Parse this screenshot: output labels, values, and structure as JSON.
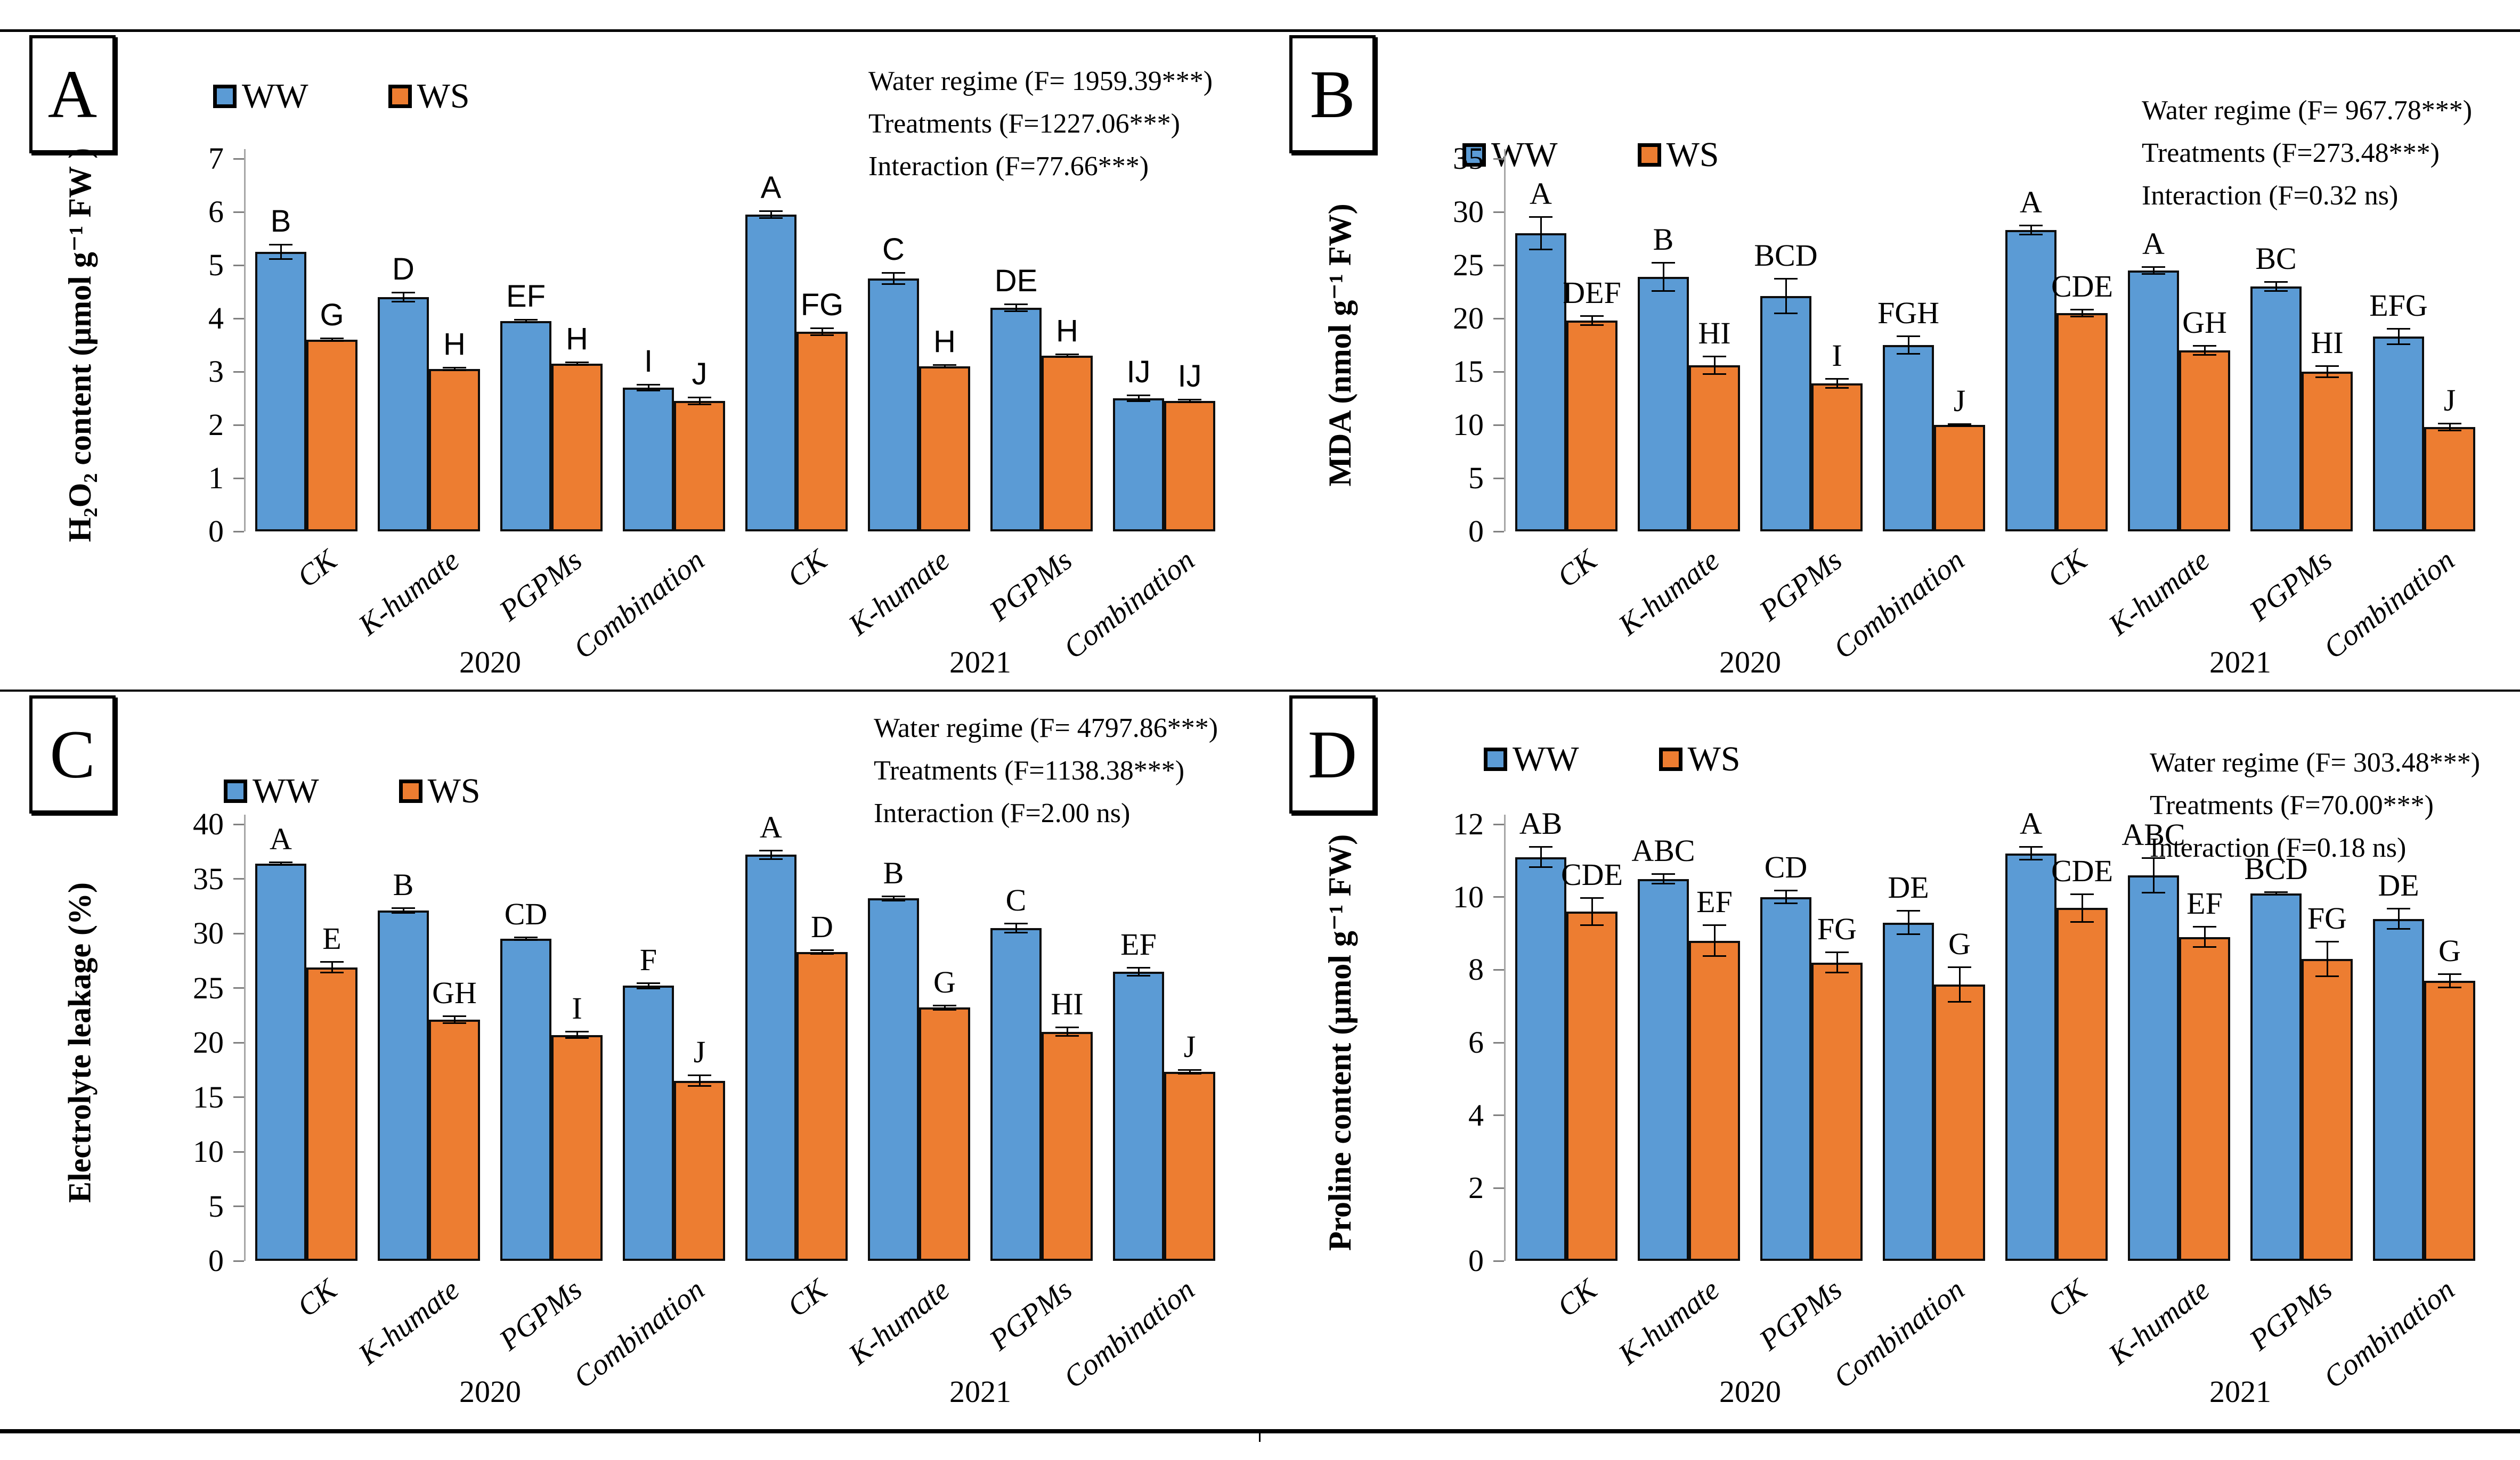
{
  "figure": {
    "legend_labels": [
      "WW",
      "WS"
    ],
    "colors": {
      "ww": "#5B9BD5",
      "ws": "#ED7D31",
      "bar_border": "#0d0d0d"
    },
    "years": [
      "2020",
      "2021"
    ],
    "categories": [
      "CK",
      "K-humate",
      "PGPMs",
      "Combination"
    ]
  },
  "chart_data": [
    {
      "panel": "A",
      "type": "bar",
      "ylabel": "H₂O₂ content (μmol g⁻¹ FW )",
      "ylim": [
        0,
        7
      ],
      "ystep": 1,
      "grid": false,
      "legend_position": "top",
      "stats": [
        "Water regime (F= 1959.39***)",
        "Treatments (F=1227.06***)",
        "Interaction (F=77.66***)"
      ],
      "years": [
        {
          "label": "2020",
          "groups": [
            {
              "cat": "CK",
              "ww": {
                "value": 5.25,
                "err": 0.15,
                "letter": "B"
              },
              "ws": {
                "value": 3.6,
                "err": 0.04,
                "letter": "G"
              }
            },
            {
              "cat": "K-humate",
              "ww": {
                "value": 4.4,
                "err": 0.1,
                "letter": "D"
              },
              "ws": {
                "value": 3.05,
                "err": 0.04,
                "letter": "H"
              }
            },
            {
              "cat": "PGPMs",
              "ww": {
                "value": 3.95,
                "err": 0.04,
                "letter": "EF"
              },
              "ws": {
                "value": 3.15,
                "err": 0.04,
                "letter": "H"
              }
            },
            {
              "cat": "Combination",
              "ww": {
                "value": 2.7,
                "err": 0.07,
                "letter": "I"
              },
              "ws": {
                "value": 2.45,
                "err": 0.08,
                "letter": "J"
              }
            }
          ]
        },
        {
          "label": "2021",
          "groups": [
            {
              "cat": "CK",
              "ww": {
                "value": 5.95,
                "err": 0.08,
                "letter": "A"
              },
              "ws": {
                "value": 3.75,
                "err": 0.08,
                "letter": "FG"
              }
            },
            {
              "cat": "K-humate",
              "ww": {
                "value": 4.75,
                "err": 0.12,
                "letter": "C"
              },
              "ws": {
                "value": 3.1,
                "err": 0.04,
                "letter": "H"
              }
            },
            {
              "cat": "PGPMs",
              "ww": {
                "value": 4.2,
                "err": 0.08,
                "letter": "DE"
              },
              "ws": {
                "value": 3.3,
                "err": 0.04,
                "letter": "H"
              }
            },
            {
              "cat": "Combination",
              "ww": {
                "value": 2.5,
                "err": 0.07,
                "letter": "IJ"
              },
              "ws": {
                "value": 2.45,
                "err": 0.04,
                "letter": "IJ"
              }
            }
          ]
        }
      ]
    },
    {
      "panel": "B",
      "type": "bar",
      "ylabel": "MDA (nmol g⁻¹ FW)",
      "ylim": [
        0,
        35
      ],
      "ystep": 5,
      "grid": false,
      "legend_position": "top",
      "stats": [
        "Water regime (F= 967.78***)",
        "Treatments (F=273.48***)",
        "Interaction (F=0.32 ns)"
      ],
      "years": [
        {
          "label": "2020",
          "groups": [
            {
              "cat": "CK",
              "ww": {
                "value": 28.0,
                "err": 1.6,
                "letter": "A"
              },
              "ws": {
                "value": 19.8,
                "err": 0.5,
                "letter": "DEF"
              }
            },
            {
              "cat": "K-humate",
              "ww": {
                "value": 23.9,
                "err": 1.4,
                "letter": "B"
              },
              "ws": {
                "value": 15.6,
                "err": 0.9,
                "letter": "HI"
              }
            },
            {
              "cat": "PGPMs",
              "ww": {
                "value": 22.1,
                "err": 1.7,
                "letter": "BCD"
              },
              "ws": {
                "value": 13.9,
                "err": 0.5,
                "letter": "I"
              }
            },
            {
              "cat": "Combination",
              "ww": {
                "value": 17.5,
                "err": 0.9,
                "letter": "FGH"
              },
              "ws": {
                "value": 10.0,
                "err": 0.15,
                "letter": "J"
              }
            }
          ]
        },
        {
          "label": "2021",
          "groups": [
            {
              "cat": "CK",
              "ww": {
                "value": 28.3,
                "err": 0.5,
                "letter": "A"
              },
              "ws": {
                "value": 20.5,
                "err": 0.4,
                "letter": "CDE"
              }
            },
            {
              "cat": "K-humate",
              "ww": {
                "value": 24.5,
                "err": 0.4,
                "letter": "A"
              },
              "ws": {
                "value": 17.0,
                "err": 0.5,
                "letter": "GH"
              }
            },
            {
              "cat": "PGPMs",
              "ww": {
                "value": 23.0,
                "err": 0.5,
                "letter": "BC"
              },
              "ws": {
                "value": 15.0,
                "err": 0.6,
                "letter": "HI"
              }
            },
            {
              "cat": "Combination",
              "ww": {
                "value": 18.3,
                "err": 0.8,
                "letter": "EFG"
              },
              "ws": {
                "value": 9.8,
                "err": 0.4,
                "letter": "J"
              }
            }
          ]
        }
      ]
    },
    {
      "panel": "C",
      "type": "bar",
      "ylabel": "Electrolyte leakage (%)",
      "ylim": [
        0,
        40
      ],
      "ystep": 5,
      "grid": false,
      "legend_position": "top",
      "stats": [
        "Water regime (F= 4797.86***)",
        "Treatments (F=1138.38***)",
        "Interaction (F=2.00 ns)"
      ],
      "years": [
        {
          "label": "2020",
          "groups": [
            {
              "cat": "CK",
              "ww": {
                "value": 36.4,
                "err": 0.2,
                "letter": "A"
              },
              "ws": {
                "value": 26.9,
                "err": 0.55,
                "letter": "E"
              }
            },
            {
              "cat": "K-humate",
              "ww": {
                "value": 32.1,
                "err": 0.3,
                "letter": "B"
              },
              "ws": {
                "value": 22.1,
                "err": 0.4,
                "letter": "GH"
              }
            },
            {
              "cat": "PGPMs",
              "ww": {
                "value": 29.5,
                "err": 0.2,
                "letter": "CD"
              },
              "ws": {
                "value": 20.7,
                "err": 0.35,
                "letter": "I"
              }
            },
            {
              "cat": "Combination",
              "ww": {
                "value": 25.2,
                "err": 0.3,
                "letter": "F"
              },
              "ws": {
                "value": 16.5,
                "err": 0.55,
                "letter": "J"
              }
            }
          ]
        },
        {
          "label": "2021",
          "groups": [
            {
              "cat": "CK",
              "ww": {
                "value": 37.2,
                "err": 0.45,
                "letter": "A"
              },
              "ws": {
                "value": 28.3,
                "err": 0.25,
                "letter": "D"
              }
            },
            {
              "cat": "K-humate",
              "ww": {
                "value": 33.2,
                "err": 0.25,
                "letter": "B"
              },
              "ws": {
                "value": 23.2,
                "err": 0.25,
                "letter": "G"
              }
            },
            {
              "cat": "PGPMs",
              "ww": {
                "value": 30.5,
                "err": 0.5,
                "letter": "C"
              },
              "ws": {
                "value": 21.0,
                "err": 0.45,
                "letter": "HI"
              }
            },
            {
              "cat": "Combination",
              "ww": {
                "value": 26.5,
                "err": 0.45,
                "letter": "EF"
              },
              "ws": {
                "value": 17.3,
                "err": 0.25,
                "letter": "J"
              }
            }
          ]
        }
      ]
    },
    {
      "panel": "D",
      "type": "bar",
      "ylabel": "Proline content (μmol g⁻¹ FW)",
      "ylim": [
        0,
        12
      ],
      "ystep": 2,
      "grid": false,
      "legend_position": "top",
      "stats": [
        "Water regime (F= 303.48***)",
        "Treatments (F=70.00***)",
        "Interaction (F=0.18 ns)"
      ],
      "years": [
        {
          "label": "2020",
          "groups": [
            {
              "cat": "CK",
              "ww": {
                "value": 11.1,
                "err": 0.3,
                "letter": "AB"
              },
              "ws": {
                "value": 9.6,
                "err": 0.4,
                "letter": "CDE"
              }
            },
            {
              "cat": "K-humate",
              "ww": {
                "value": 10.5,
                "err": 0.15,
                "letter": "ABC"
              },
              "ws": {
                "value": 8.8,
                "err": 0.45,
                "letter": "EF"
              }
            },
            {
              "cat": "PGPMs",
              "ww": {
                "value": 10.0,
                "err": 0.2,
                "letter": "CD"
              },
              "ws": {
                "value": 8.2,
                "err": 0.3,
                "letter": "FG"
              }
            },
            {
              "cat": "Combination",
              "ww": {
                "value": 9.3,
                "err": 0.35,
                "letter": "DE"
              },
              "ws": {
                "value": 7.6,
                "err": 0.5,
                "letter": "G"
              }
            }
          ]
        },
        {
          "label": "2021",
          "groups": [
            {
              "cat": "CK",
              "ww": {
                "value": 11.2,
                "err": 0.2,
                "letter": "A"
              },
              "ws": {
                "value": 9.7,
                "err": 0.4,
                "letter": "CDE"
              }
            },
            {
              "cat": "K-humate",
              "ww": {
                "value": 10.6,
                "err": 0.5,
                "letter": "ABC"
              },
              "ws": {
                "value": 8.9,
                "err": 0.3,
                "letter": "EF"
              }
            },
            {
              "cat": "PGPMs",
              "ww": {
                "value": 10.1,
                "err": 0.05,
                "letter": "BCD"
              },
              "ws": {
                "value": 8.3,
                "err": 0.5,
                "letter": "FG"
              }
            },
            {
              "cat": "Combination",
              "ww": {
                "value": 9.4,
                "err": 0.3,
                "letter": "DE"
              },
              "ws": {
                "value": 7.7,
                "err": 0.2,
                "letter": "G"
              }
            }
          ]
        }
      ]
    }
  ]
}
